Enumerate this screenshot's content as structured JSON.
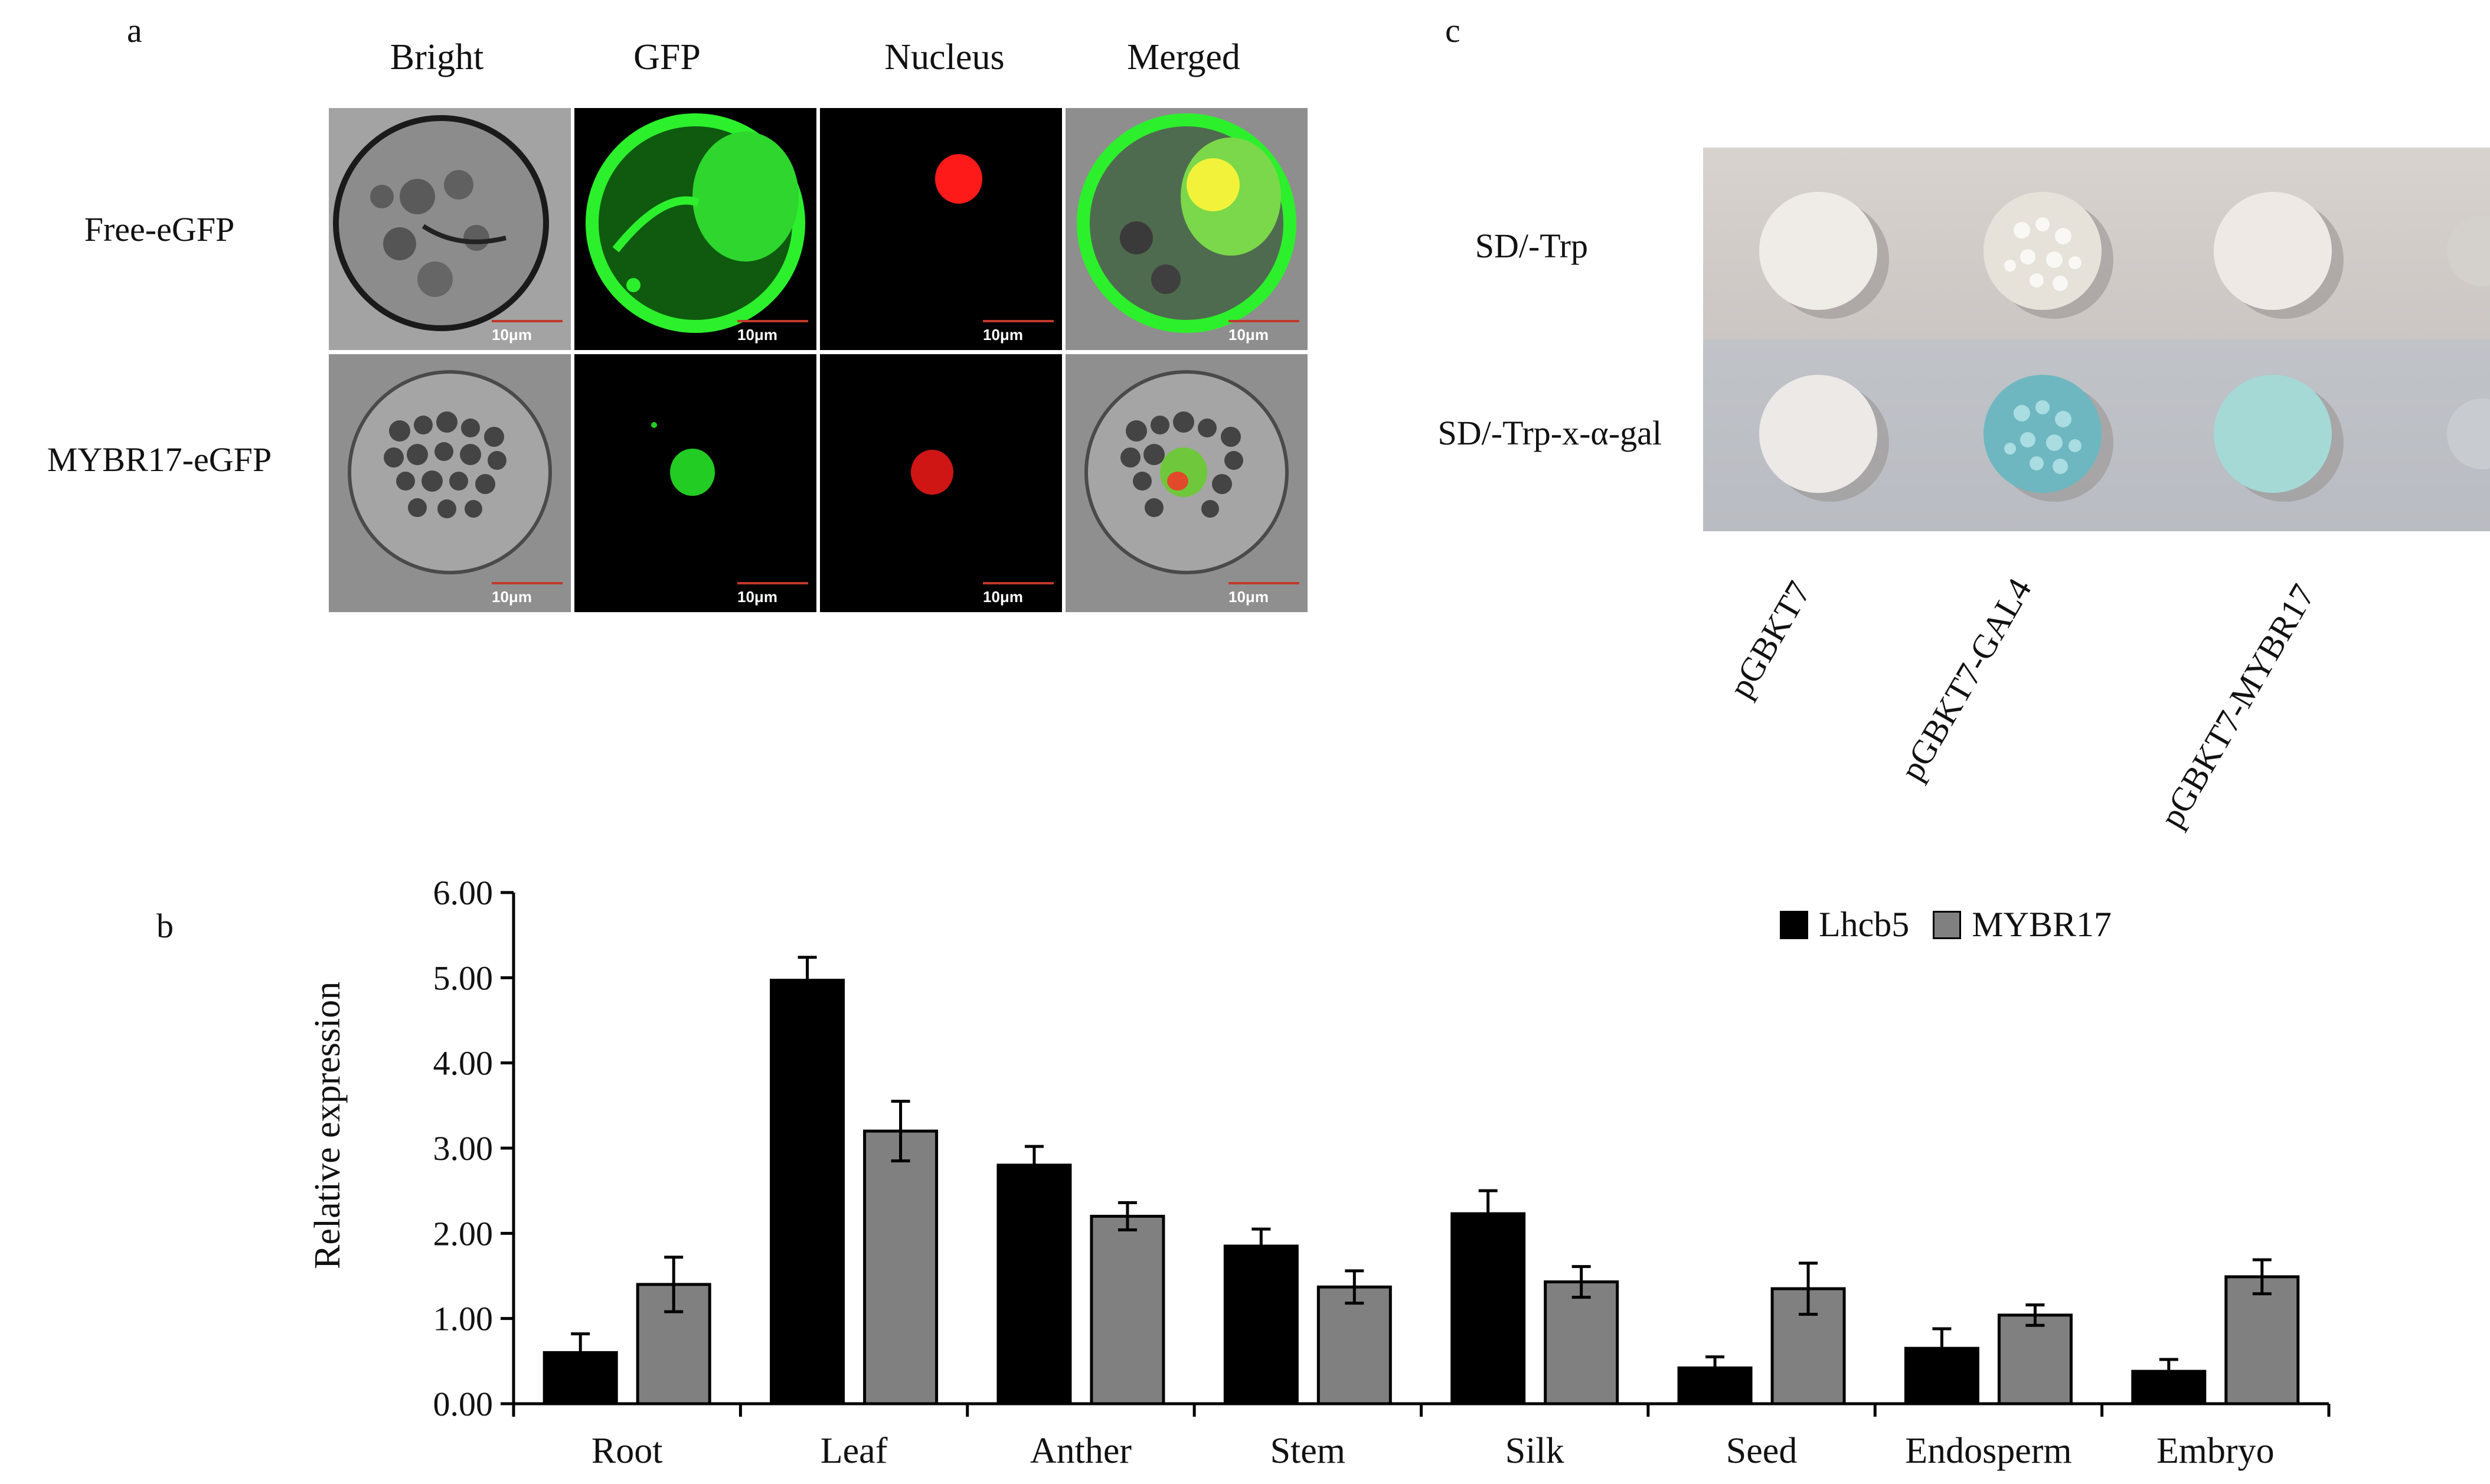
{
  "panel_a": {
    "label": "a",
    "columns": [
      "Bright",
      "GFP",
      "Nucleus",
      "Merged"
    ],
    "rows": [
      "Free-eGFP",
      "MYBR17-eGFP"
    ],
    "scale_bar": "10μm"
  },
  "panel_b": {
    "label": "b"
  },
  "panel_c": {
    "label": "c",
    "rows": [
      "SD/-Trp",
      "SD/-Trp-x-α-gal"
    ],
    "constructs": [
      "pGBKT7",
      "pGBKT7-GAL4",
      "pGBKT7-MYBR17"
    ]
  },
  "colors": {
    "lhcb5": "#000000",
    "mybr17": "#808080",
    "gfp": "#22dd22",
    "nucleus": "#ff1a1a",
    "blue_colony": "#7fc3c7"
  },
  "chart_data": {
    "type": "bar",
    "categories": [
      "Root",
      "Leaf",
      "Anther",
      "Stem",
      "Silk",
      "Seed",
      "Endosperm",
      "Embryo"
    ],
    "series": [
      {
        "name": "Lhcb5",
        "values": [
          0.6,
          4.97,
          2.8,
          1.85,
          2.23,
          0.42,
          0.65,
          0.38
        ],
        "errors": [
          0.22,
          0.27,
          0.22,
          0.2,
          0.27,
          0.13,
          0.23,
          0.14
        ]
      },
      {
        "name": "MYBR17",
        "values": [
          1.4,
          3.2,
          2.2,
          1.37,
          1.43,
          1.35,
          1.04,
          1.49
        ],
        "errors": [
          0.32,
          0.35,
          0.16,
          0.19,
          0.18,
          0.3,
          0.12,
          0.2
        ]
      }
    ],
    "ylabel": "Relative expression",
    "xlabel": "",
    "ylim": [
      0,
      6
    ],
    "yticks": [
      "0.00",
      "1.00",
      "2.00",
      "3.00",
      "4.00",
      "5.00",
      "6.00"
    ],
    "legend_position": "top-right"
  }
}
